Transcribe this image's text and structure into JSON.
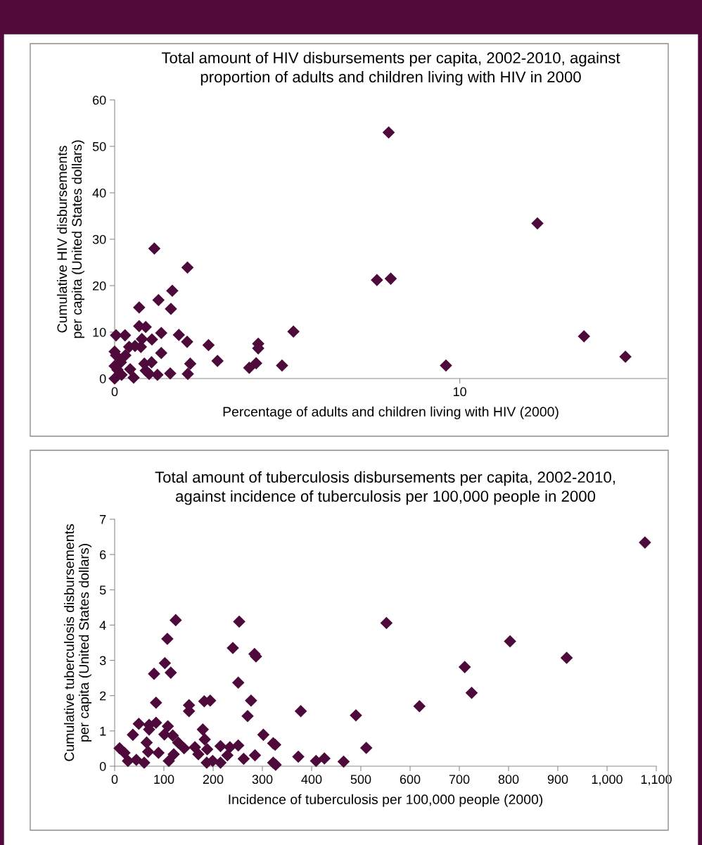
{
  "chart_data": [
    {
      "type": "scatter",
      "title": "Total amount of HIV disbursements per capita, 2002-2010, against\nproportion of adults and children living with HIV in 2000",
      "xlabel": "Percentage of adults and children living with HIV (2000)",
      "ylabel": "Cumulative HIV disbursements\nper capita (United States dollars)",
      "marker": "diamond",
      "grid": false,
      "xlim": [
        0,
        16
      ],
      "ylim": [
        0,
        60
      ],
      "xticks": [
        0,
        10
      ],
      "yticks": [
        0,
        10,
        20,
        30,
        40,
        50,
        60
      ],
      "series": [
        {
          "color": "#4f0a3c",
          "x": [
            7.94,
            12.25,
            7.6,
            8.0,
            13.6,
            14.8,
            9.6,
            5.18,
            4.85,
            4.16,
            4.16,
            4.1,
            3.9,
            2.98,
            2.72,
            2.11,
            1.15,
            1.67,
            1.27,
            0.71,
            1.63,
            0.71,
            0.9,
            0.04,
            0.3,
            1.35,
            1.86,
            2.1,
            0.79,
            1.08,
            0.42,
            0.59,
            0.76,
            1.35,
            2.19,
            2.12,
            1.61,
            1.24,
            0.86,
            1.07,
            0.9,
            1.0,
            0.55,
            0.0,
            0.0,
            0.18,
            0.45,
            0.0,
            0.04,
            0.31,
            0.2,
            0.08
          ],
          "values": [
            53.0,
            33.4,
            21.2,
            21.5,
            9.1,
            4.7,
            2.8,
            10.1,
            2.8,
            7.5,
            6.5,
            3.3,
            2.3,
            3.8,
            7.2,
            23.9,
            28.0,
            18.9,
            16.9,
            15.3,
            15.0,
            11.3,
            11.1,
            9.3,
            9.3,
            9.8,
            9.4,
            7.9,
            8.5,
            8.4,
            6.8,
            7.0,
            6.8,
            5.5,
            3.2,
            1.0,
            1.1,
            0.8,
            3.2,
            3.5,
            1.7,
            1.0,
            0.2,
            5.8,
            0.0,
            3.5,
            2.0,
            2.7,
            5.0,
            5.0,
            0.8,
            1.9
          ]
        }
      ]
    },
    {
      "type": "scatter",
      "title": "Total amount of tuberculosis disbursements per capita, 2002-2010,\nagainst incidence of tuberculosis per 100,000 people in 2000",
      "xlabel": "Incidence of tuberculosis per 100,000 people (2000)",
      "ylabel": "Cumulative tuberculosis disbursements\nper capita (United States dollars)",
      "marker": "diamond",
      "grid": false,
      "xlim": [
        0,
        1100
      ],
      "ylim": [
        0,
        7
      ],
      "xticks": [
        0,
        100,
        200,
        300,
        400,
        500,
        600,
        700,
        800,
        900,
        {
          "value": 1000,
          "label": "1,000"
        },
        {
          "value": 1100,
          "label": "1,100"
        }
      ],
      "yticks": [
        0,
        1,
        2,
        3,
        4,
        5,
        6,
        7
      ],
      "series": [
        {
          "color": "#4f0a3c",
          "x": [
            1077,
            552,
            803,
            918,
            711,
            725,
            619,
            378,
            490,
            511,
            326,
            327,
            373,
            409,
            426,
            465,
            124,
            253,
            107,
            240,
            284,
            287,
            102,
            80,
            114,
            251,
            84,
            277,
            151,
            151,
            182,
            194,
            270,
            49,
            70,
            70,
            84,
            108,
            101,
            118,
            37,
            179,
            183,
            302,
            322,
            10,
            20,
            27,
            44,
            60,
            65,
            68,
            89,
            129,
            141,
            120,
            110,
            163,
            170,
            188,
            187,
            199,
            215,
            215,
            234,
            229,
            251,
            262,
            285,
            322
          ],
          "values": [
            6.34,
            4.06,
            3.54,
            3.07,
            2.81,
            2.08,
            1.7,
            1.56,
            1.44,
            0.52,
            0.61,
            0.04,
            0.27,
            0.15,
            0.22,
            0.13,
            4.14,
            4.1,
            3.61,
            3.35,
            3.18,
            3.11,
            2.92,
            2.62,
            2.65,
            2.37,
            1.8,
            1.86,
            1.73,
            1.56,
            1.84,
            1.86,
            1.42,
            1.2,
            1.17,
            1.04,
            1.23,
            1.13,
            0.9,
            0.87,
            0.89,
            1.04,
            0.76,
            0.89,
            0.65,
            0.51,
            0.38,
            0.15,
            0.18,
            0.1,
            0.67,
            0.41,
            0.38,
            0.67,
            0.51,
            0.34,
            0.15,
            0.54,
            0.34,
            0.48,
            0.1,
            0.15,
            0.1,
            0.57,
            0.54,
            0.31,
            0.59,
            0.21,
            0.31,
            0.1
          ]
        }
      ]
    }
  ]
}
